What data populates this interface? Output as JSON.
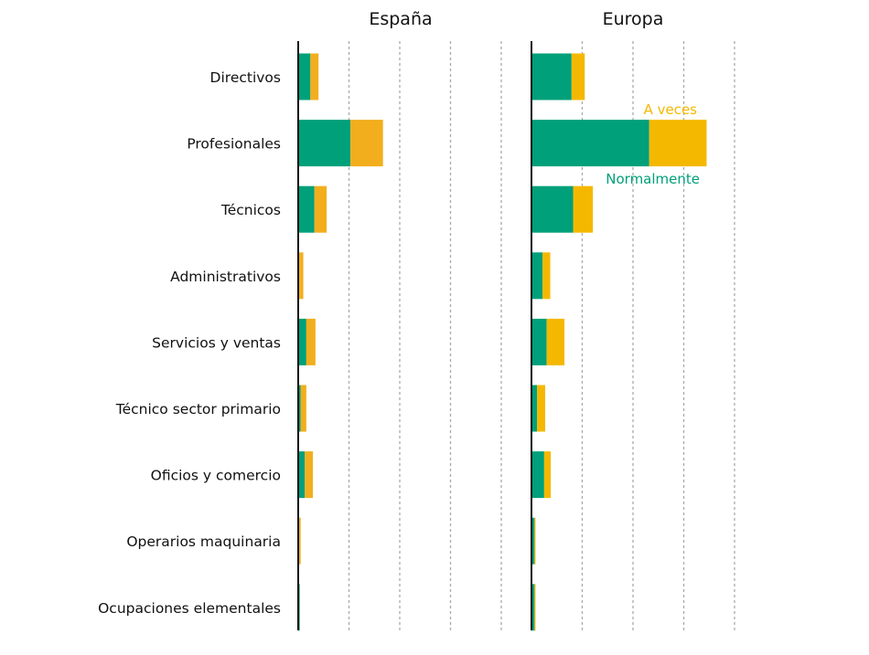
{
  "chart_data": {
    "type": "bar",
    "orientation": "horizontal",
    "stacked": true,
    "categories": [
      "Directivos",
      "Profesionales",
      "Técnicos",
      "Administrativos",
      "Servicios y ventas",
      "Técnico sector primario",
      "Oficios y comercio",
      "Operarios maquinaria",
      "Ocupaciones elementales"
    ],
    "xlim": [
      0,
      40
    ],
    "grid": true,
    "panels": [
      {
        "title": "España",
        "series": [
          {
            "name": "Normalmente",
            "color": "#00A07A",
            "values": [
              2.4,
              10.3,
              3.2,
              0.2,
              1.6,
              0.5,
              1.3,
              0.2,
              0.3
            ]
          },
          {
            "name": "A veces",
            "color": "#F2AE1C",
            "values": [
              1.6,
              6.4,
              2.4,
              0.8,
              1.8,
              1.1,
              1.6,
              0.3,
              0.0
            ]
          }
        ]
      },
      {
        "title": "Europa",
        "series": [
          {
            "name": "Normalmente",
            "color": "#00A07A",
            "values": [
              7.9,
              23.2,
              8.2,
              2.2,
              3.0,
              1.1,
              2.5,
              0.6,
              0.6
            ]
          },
          {
            "name": "A veces",
            "color": "#F5B800",
            "values": [
              2.6,
              11.3,
              3.9,
              1.5,
              3.5,
              1.6,
              1.3,
              0.2,
              0.2
            ]
          }
        ]
      }
    ],
    "annotations": {
      "a_veces": "A veces",
      "normalmente": "Normalmente"
    }
  }
}
